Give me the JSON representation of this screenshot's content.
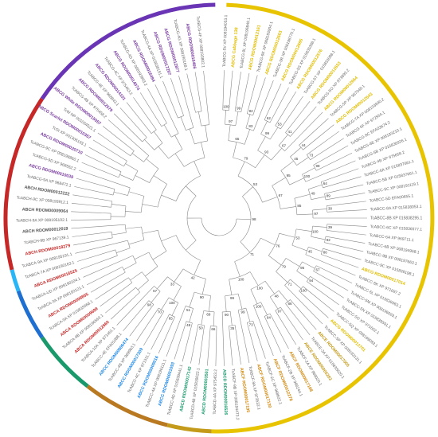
{
  "colors": {
    "ABCA": "#c62828",
    "ABCB": "#8e44ad",
    "ABCC": "#1e88e5",
    "ABCD": "#1a9a6c",
    "ABCE": "#c49a1a",
    "ABCF": "#d08a10",
    "ABCG": "#e0bd00",
    "ABCH": "#555555",
    "ABCI": "#7b3fa0",
    "accession": "#666666",
    "branch": "#888888"
  },
  "outer_ring": [
    {
      "clade": "ABCG",
      "color": "#e8c400"
    },
    {
      "clade": "ABCE",
      "color": "#c49a1a"
    },
    {
      "clade": "ABCF",
      "color": "#b87920"
    },
    {
      "clade": "ABCD",
      "color": "#1a9a6c"
    },
    {
      "clade": "ABCC",
      "color": "#1e6fd0"
    },
    {
      "clade": "ABCC",
      "color": "#29b6f6"
    },
    {
      "clade": "ABCA",
      "color": "#c62828"
    },
    {
      "clade": "ABCB",
      "color": "#6a35b5"
    }
  ],
  "leaves": [
    {
      "label": "TcABCG-5V XP 008194053.1",
      "group": "accession"
    },
    {
      "label": "ABCG Cabbage 138",
      "group": "ABCG"
    },
    {
      "label": "TcABCG-9L XP 008196849.1",
      "group": "accession"
    },
    {
      "label": "ABCG RDOM00012161",
      "group": "ABCG"
    },
    {
      "label": "TcABCG-9K XP 008193004.1",
      "group": "accession"
    },
    {
      "label": "ABCG RDOM00012663",
      "group": "ABCG"
    },
    {
      "label": "TcABCG-5R XP 008198770.1",
      "group": "accession"
    },
    {
      "label": "ABCG RDOM00012685",
      "group": "ABCG"
    },
    {
      "label": "TcABCG-5S XP 015835398.1",
      "group": "accession"
    },
    {
      "label": "ABCG RDOM00012576",
      "group": "ABCG"
    },
    {
      "label": "TcABCG-5T XP 015833098.1",
      "group": "accession"
    },
    {
      "label": "ABCG RDOM00012653",
      "group": "ABCG"
    },
    {
      "label": "TcABCG-5O XP 973893.2",
      "group": "accession"
    },
    {
      "label": "ABCG RDOM00012664",
      "group": "ABCG"
    },
    {
      "label": "TcABCG-5P XP 967948.1",
      "group": "accession"
    },
    {
      "label": "ABCG RDOM00012543",
      "group": "ABCG"
    },
    {
      "label": "TcABCG-7A XP 008193690.2",
      "group": "accession"
    },
    {
      "label": "TcABCG-5F XP 972554.1",
      "group": "accession"
    },
    {
      "label": "TcABCG-8C EFA03674.2",
      "group": "accession"
    },
    {
      "label": "TcABCG-8E XP 008193210.1",
      "group": "accession"
    },
    {
      "label": "TcABCG-5B XP 015836926.1",
      "group": "accession"
    },
    {
      "label": "TcABCG-4B XP 975658.2",
      "group": "accession"
    },
    {
      "label": "TcABCC-6A XP 015837661.1",
      "group": "accession"
    },
    {
      "label": "TcABCC-5B XP 015837661.1",
      "group": "accession"
    },
    {
      "label": "TcABCC-5C XP 008191119.1",
      "group": "accession"
    },
    {
      "label": "TcABCC-5D EFA00655.1",
      "group": "accession"
    },
    {
      "label": "TcABCC-8A XP 015838053.1",
      "group": "accession"
    },
    {
      "label": "TcABCC-8B XP 015838295.1",
      "group": "accession"
    },
    {
      "label": "TcABCC-6C XP 015836577.1",
      "group": "accession"
    },
    {
      "label": "TcABCC-6A XP 969711.1",
      "group": "accession"
    },
    {
      "label": "TcABCC-6B XP 008194968.1",
      "group": "accession"
    },
    {
      "label": "TcABCC-9B XP 008197663.1",
      "group": "accession"
    },
    {
      "label": "TcABCC-9C XP 015839198.1",
      "group": "accession"
    },
    {
      "label": "ABCG RDOM00017014",
      "group": "ABCG"
    },
    {
      "label": "TcABCC-5K XP 971697.2",
      "group": "accession"
    },
    {
      "label": "TcABCC-5L XP 015839363.1",
      "group": "accession"
    },
    {
      "label": "TcABCC-5M XP 008196093.1",
      "group": "accession"
    },
    {
      "label": "TcABCC-5N XP 015839591.1",
      "group": "accession"
    },
    {
      "label": "TcABCC-5O XP 971602.1",
      "group": "accession"
    },
    {
      "label": "TcABCC-5Q XP 008199083.1",
      "group": "accession"
    },
    {
      "label": "ABCG RDOM00012701",
      "group": "ABCG"
    },
    {
      "label": "TcABCC-5P XP 008193131.1",
      "group": "accession"
    },
    {
      "label": "ABCE RDOM00017005",
      "group": "ABCE"
    },
    {
      "label": "TcABCE-3A XP 015835620.1",
      "group": "accession"
    },
    {
      "label": "ABCE RDOM00005283",
      "group": "ABCE"
    },
    {
      "label": "TcABCF-2A XP 968020.1",
      "group": "accession"
    },
    {
      "label": "ABCF RDOM00017108",
      "group": "ABCF"
    },
    {
      "label": "TcABCF-2B XP 966244.1",
      "group": "accession"
    },
    {
      "label": "ABCF RDOM00012278",
      "group": "ABCF"
    },
    {
      "label": "TcABCF-2C XP 968622.1",
      "group": "accession"
    },
    {
      "label": "ABCF RDOM00017130",
      "group": "ABCF"
    },
    {
      "label": "TcABCF-9A XP 973532.1",
      "group": "accession"
    },
    {
      "label": "ABCF RDOM00017195",
      "group": "ABCF"
    },
    {
      "label": "TcABCF-9B XP 008194473.2",
      "group": "accession"
    },
    {
      "label": "ABCD RDOM00016526",
      "group": "ABCD"
    },
    {
      "label": "TcABCD-4A XP 975453.2",
      "group": "accession"
    },
    {
      "label": "ABCD RDOM00003501",
      "group": "ABCD"
    },
    {
      "label": "TcABCD-4B XP 015839022.1",
      "group": "accession"
    },
    {
      "label": "ABCD RDOM00017142",
      "group": "ABCD"
    },
    {
      "label": "TcABCC-4D XP 015839441.1",
      "group": "accession"
    },
    {
      "label": "ABCC RDOM00001093",
      "group": "ABCC"
    },
    {
      "label": "TcABCC-4A XP 008196111.1",
      "group": "accession"
    },
    {
      "label": "ABCC RDOM00009016",
      "group": "ABCC"
    },
    {
      "label": "TcABCC-4C XP 971311.1",
      "group": "accession"
    },
    {
      "label": "ABCC RDOM00017209",
      "group": "ABCC"
    },
    {
      "label": "TcABCC-4B XP 969963.1",
      "group": "accession"
    },
    {
      "label": "ABCC RDOM00006474",
      "group": "ABCC"
    },
    {
      "label": "TcABCC-4E EFA01088.1",
      "group": "accession"
    },
    {
      "label": "TcABCA-10A XP 971451.1",
      "group": "accession"
    },
    {
      "label": "ABCA RDOM00012660",
      "group": "ABCA"
    },
    {
      "label": "TcABCA-9B XP 008196563.1",
      "group": "accession"
    },
    {
      "label": "ABCA RDOM00009699",
      "group": "ABCA"
    },
    {
      "label": "TcABCA-9A XP 015835568.1",
      "group": "accession"
    },
    {
      "label": "ABCA RDOM00009855",
      "group": "ABCA"
    },
    {
      "label": "TcABCA-3A XP 008193121.1",
      "group": "accession"
    },
    {
      "label": "TcABCA-UD XP 008190104.1",
      "group": "accession"
    },
    {
      "label": "ABCA RDOM00016525",
      "group": "ABCA"
    },
    {
      "label": "TcABCA-7A XP 008190163.1",
      "group": "accession"
    },
    {
      "label": "TcABCA-9A XP 008195191.1",
      "group": "accession"
    },
    {
      "label": "ABCH RDOM00018279",
      "group": "ABCA"
    },
    {
      "label": "TcABCH-9B XP 967139.1",
      "group": "accession"
    },
    {
      "label": "ABCH RDOM00012019",
      "group": "ABCH"
    },
    {
      "label": "TcABCH-9A XP 008195192.1",
      "group": "accession"
    },
    {
      "label": "ABCH RDOM00009064",
      "group": "ABCH"
    },
    {
      "label": "TcABCH-9C XP 008193912.1",
      "group": "accession"
    },
    {
      "label": "ABCH RDOM00012222",
      "group": "ABCH"
    },
    {
      "label": "TcABCG-9A XP 968472.1",
      "group": "accession"
    },
    {
      "label": "ABCG RDOM00010039",
      "group": "ABCI"
    },
    {
      "label": "TcABCG-9D XP 968552.2",
      "group": "accession"
    },
    {
      "label": "TcABCG-9C XP 008198860.1",
      "group": "accession"
    },
    {
      "label": "ABCG RDOM00020710",
      "group": "ABCI"
    },
    {
      "label": "TcSt XP 001306193.1",
      "group": "accession"
    },
    {
      "label": "ABCG Scarlet RDOM00010357",
      "group": "ABCI"
    },
    {
      "label": "TcW NP 001034521.1",
      "group": "accession"
    },
    {
      "label": "ABCG White RDOM00015057",
      "group": "ABCI"
    },
    {
      "label": "TcABCG-4B XP 975458.2",
      "group": "accession"
    },
    {
      "label": "ABCG RDOM00012579",
      "group": "ABCI"
    },
    {
      "label": "TcABCG-4E XP 968843.1",
      "group": "accession"
    },
    {
      "label": "ABCG RDOM00014101",
      "group": "ABCI"
    },
    {
      "label": "TcABCG-4C XP 975463.2",
      "group": "accession"
    },
    {
      "label": "ABCG RDOM00014074",
      "group": "ABCI"
    },
    {
      "label": "TcABCG-4D XP 008193893.2",
      "group": "accession"
    },
    {
      "label": "ABCG RDOM00016494",
      "group": "ABCI"
    },
    {
      "label": "TcABCG-4A XP 015838151.1",
      "group": "accession"
    },
    {
      "label": "ABCG RDOM00017297",
      "group": "ABCI"
    },
    {
      "label": "ABCG RDOM00012877",
      "group": "ABCI"
    },
    {
      "label": "TcABCG-4G XP 008190168.1",
      "group": "accession"
    },
    {
      "label": "ABCG RDOM00016466",
      "group": "ABCI"
    },
    {
      "label": "TcABCG-4F XP 008193802.1",
      "group": "accession"
    }
  ],
  "support_values": [
    "100",
    "99",
    "97",
    "82",
    "83",
    "65",
    "62",
    "53",
    "99",
    "41",
    "67",
    "93",
    "79",
    "44",
    "73",
    "45",
    "98",
    "100",
    "95",
    "64",
    "89",
    "49",
    "30",
    "97",
    "85",
    "67",
    "53",
    "39",
    "92",
    "100",
    "86",
    "45",
    "53",
    "67",
    "94",
    "95",
    "100",
    "71",
    "79",
    "76",
    "86",
    "97",
    "48",
    "94",
    "100",
    "100",
    "73",
    "99",
    "35",
    "90",
    "99",
    "100",
    "71",
    "98",
    "66",
    "50",
    "69",
    "48",
    "51",
    "90",
    "65",
    "70",
    "100",
    "98",
    "67",
    "33",
    "42"
  ]
}
